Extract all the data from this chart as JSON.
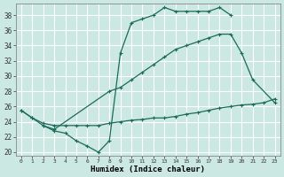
{
  "xlabel": "Humidex (Indice chaleur)",
  "bg_color": "#cce8e3",
  "grid_color": "#b0d8d2",
  "line_color": "#1a6b5a",
  "xlim": [
    -0.5,
    23.5
  ],
  "ylim": [
    19.5,
    39.5
  ],
  "xticks": [
    0,
    1,
    2,
    3,
    4,
    5,
    6,
    7,
    8,
    9,
    10,
    11,
    12,
    13,
    14,
    15,
    16,
    17,
    18,
    19,
    20,
    21,
    22,
    23
  ],
  "yticks": [
    20,
    22,
    24,
    26,
    28,
    30,
    32,
    34,
    36,
    38
  ],
  "line1_x": [
    0,
    1,
    2,
    3,
    4,
    5,
    6,
    7,
    8,
    9,
    10,
    11,
    12,
    13,
    14,
    15,
    16,
    17,
    18,
    19
  ],
  "line1_y": [
    25.5,
    24.5,
    23.5,
    22.8,
    22.5,
    21.5,
    20.8,
    20.0,
    21.5,
    33.0,
    37.0,
    37.5,
    38.0,
    39.0,
    38.5,
    38.5,
    38.5,
    38.5,
    39.0,
    38.0
  ],
  "line2_x": [
    2,
    3,
    8,
    9,
    10,
    11,
    12,
    13,
    14,
    15,
    16,
    17,
    18,
    19,
    20,
    21,
    23
  ],
  "line2_y": [
    23.5,
    23.0,
    28.0,
    28.5,
    29.5,
    30.5,
    31.5,
    32.5,
    33.5,
    34.0,
    34.5,
    35.0,
    35.5,
    35.5,
    33.0,
    29.5,
    26.5
  ],
  "line3_x": [
    0,
    1,
    2,
    3,
    4,
    5,
    6,
    7,
    8,
    9,
    10,
    11,
    12,
    13,
    14,
    15,
    16,
    17,
    18,
    19,
    20,
    21,
    22,
    23
  ],
  "line3_y": [
    25.5,
    24.5,
    23.8,
    23.5,
    23.5,
    23.5,
    23.5,
    23.5,
    23.8,
    24.0,
    24.2,
    24.3,
    24.5,
    24.5,
    24.7,
    25.0,
    25.2,
    25.5,
    25.8,
    26.0,
    26.2,
    26.3,
    26.5,
    27.0
  ]
}
